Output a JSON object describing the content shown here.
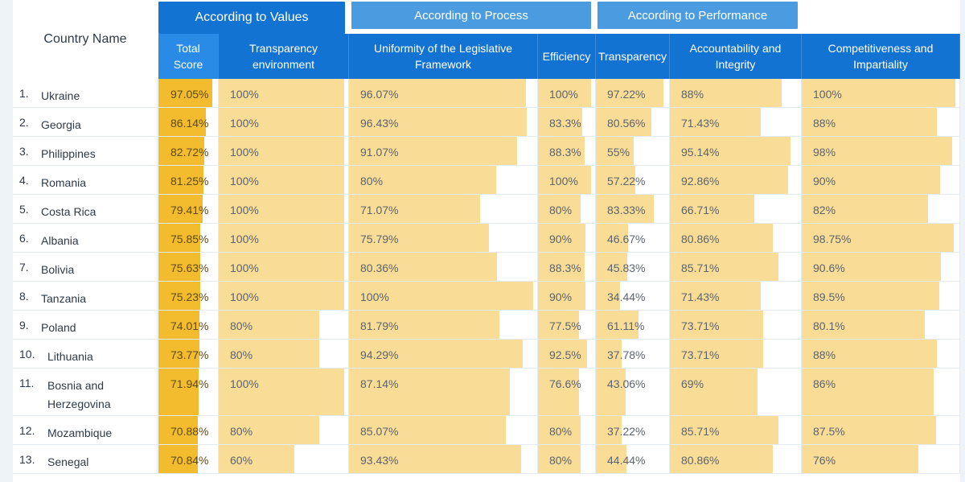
{
  "header": {
    "country_col": "Country Name",
    "groups": [
      {
        "label": "According to Values",
        "active": true
      },
      {
        "label": "According to Process",
        "active": false
      },
      {
        "label": "According to Performance",
        "active": false
      }
    ],
    "columns": [
      "Total Score",
      "Transparency environment",
      "Uniformity of the Legislative Framework",
      "Efficiency",
      "Transparency",
      "Accountability and Integrity",
      "Competitiveness and Impartiality"
    ]
  },
  "colors": {
    "header_blue": "#1273d3",
    "tab_blue": "#4b9be0",
    "total_bar": "#f3bc2f",
    "bar": "#f9dc95"
  },
  "rows": [
    {
      "rank": "1.",
      "country": "Ukraine",
      "values": [
        "97.05%",
        "100%",
        "96.07%",
        "100%",
        "97.22%",
        "88%",
        "100%"
      ]
    },
    {
      "rank": "2.",
      "country": "Georgia",
      "values": [
        "86.14%",
        "100%",
        "96.43%",
        "83.3%",
        "80.56%",
        "71.43%",
        "88%"
      ]
    },
    {
      "rank": "3.",
      "country": "Philippines",
      "values": [
        "82.72%",
        "100%",
        "91.07%",
        "88.3%",
        "55%",
        "95.14%",
        "98%"
      ]
    },
    {
      "rank": "4.",
      "country": "Romania",
      "values": [
        "81.25%",
        "100%",
        "80%",
        "100%",
        "57.22%",
        "92.86%",
        "90%"
      ]
    },
    {
      "rank": "5.",
      "country": "Costa Rica",
      "values": [
        "79.41%",
        "100%",
        "71.07%",
        "80%",
        "83.33%",
        "66.71%",
        "82%"
      ]
    },
    {
      "rank": "6.",
      "country": "Albania",
      "values": [
        "75.85%",
        "100%",
        "75.79%",
        "90%",
        "46.67%",
        "80.86%",
        "98.75%"
      ]
    },
    {
      "rank": "7.",
      "country": "Bolivia",
      "values": [
        "75.63%",
        "100%",
        "80.36%",
        "88.3%",
        "45.83%",
        "85.71%",
        "90.6%"
      ]
    },
    {
      "rank": "8.",
      "country": "Tanzania",
      "values": [
        "75.23%",
        "100%",
        "100%",
        "90%",
        "34.44%",
        "71.43%",
        "89.5%"
      ]
    },
    {
      "rank": "9.",
      "country": "Poland",
      "values": [
        "74.01%",
        "80%",
        "81.79%",
        "77.5%",
        "61.11%",
        "73.71%",
        "80.1%"
      ]
    },
    {
      "rank": "10.",
      "country": "Lithuania",
      "values": [
        "73.77%",
        "80%",
        "94.29%",
        "92.5%",
        "37.78%",
        "73.71%",
        "88%"
      ]
    },
    {
      "rank": "11.",
      "country": "Bosnia and Herzegovina",
      "values": [
        "71.94%",
        "100%",
        "87.14%",
        "76.6%",
        "43.06%",
        "69%",
        "86%"
      ]
    },
    {
      "rank": "12.",
      "country": "Mozambique",
      "values": [
        "70.88%",
        "80%",
        "85.07%",
        "80%",
        "37.22%",
        "85.71%",
        "87.5%"
      ]
    },
    {
      "rank": "13.",
      "country": "Senegal",
      "values": [
        "70.84%",
        "60%",
        "93.43%",
        "80%",
        "44.44%",
        "80.86%",
        "76%"
      ]
    }
  ]
}
